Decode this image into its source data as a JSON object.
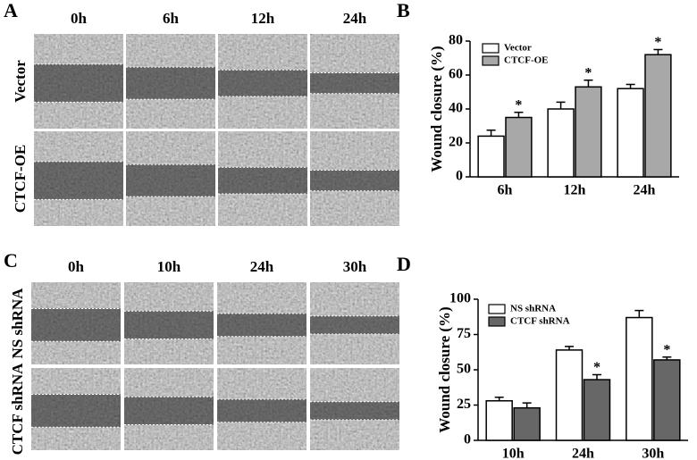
{
  "panel_labels": [
    "A",
    "B",
    "C",
    "D"
  ],
  "micrographs": [
    {
      "columns": [
        "0h",
        "6h",
        "12h",
        "24h"
      ],
      "rows": [
        "Vector",
        "CTCF-OE"
      ]
    },
    {
      "columns": [
        "0h",
        "10h",
        "24h",
        "30h"
      ],
      "rows": [
        "NS shRNA",
        "CTCF shRNA"
      ]
    }
  ],
  "chart_data": [
    {
      "type": "bar",
      "ylabel": "Wound closure (%)",
      "categories": [
        "6h",
        "12h",
        "24h"
      ],
      "series": [
        {
          "name": "Vector",
          "color": "#ffffff",
          "values": [
            24,
            40,
            52
          ],
          "errors": [
            3.5,
            4,
            2.5
          ],
          "marks": [
            null,
            null,
            null
          ]
        },
        {
          "name": "CTCF-OE",
          "color": "#a8a8a8",
          "values": [
            35,
            53,
            72
          ],
          "errors": [
            3,
            4,
            3
          ],
          "marks": [
            "*",
            "*",
            "*"
          ]
        }
      ],
      "ylim": [
        0,
        80
      ],
      "yticks": [
        0,
        20,
        40,
        60,
        80
      ],
      "legend": "upper left"
    },
    {
      "type": "bar",
      "ylabel": "Wound closure (%)",
      "categories": [
        "10h",
        "24h",
        "30h"
      ],
      "series": [
        {
          "name": "NS shRNA",
          "color": "#ffffff",
          "values": [
            28,
            64,
            87
          ],
          "errors": [
            2.5,
            2.5,
            5
          ],
          "marks": [
            null,
            null,
            null
          ]
        },
        {
          "name": "CTCF shRNA",
          "color": "#676767",
          "values": [
            23,
            43,
            57
          ],
          "errors": [
            3.5,
            3.5,
            2
          ],
          "marks": [
            null,
            "*",
            "*"
          ]
        }
      ],
      "ylim": [
        0,
        100
      ],
      "yticks": [
        0,
        25,
        50,
        75,
        100
      ],
      "legend": "upper left"
    }
  ]
}
